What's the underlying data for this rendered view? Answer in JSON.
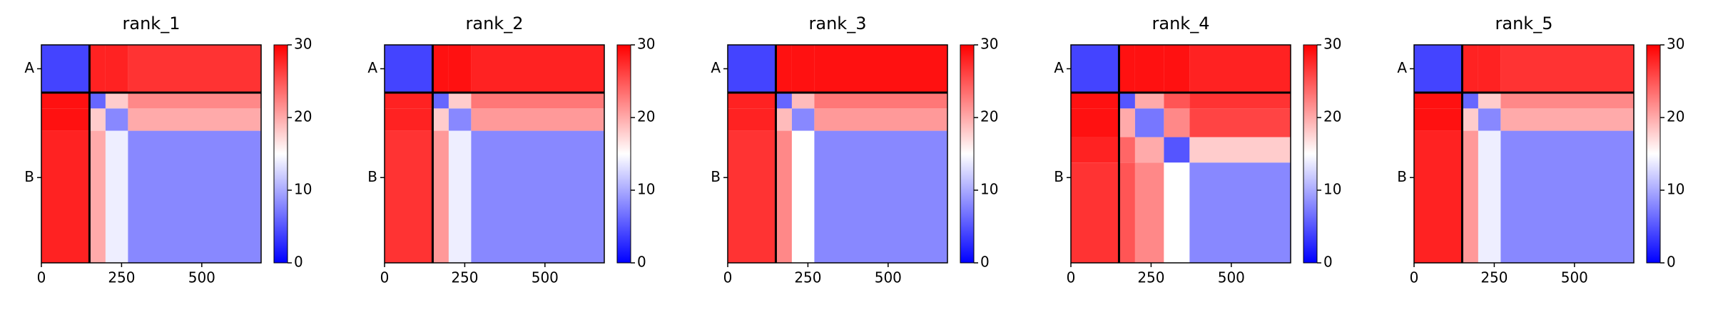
{
  "chart_data": [
    {
      "type": "heatmap",
      "title": "rank_1",
      "xlim": [
        0,
        685
      ],
      "ylim": [
        685,
        0
      ],
      "xticks": [
        0,
        250,
        500
      ],
      "yticks": [
        {
          "value": 75,
          "label": "A"
        },
        {
          "value": 417,
          "label": "B"
        }
      ],
      "boundaries": [
        150,
        200,
        270
      ],
      "chain_break": 150,
      "values": [
        [
          4,
          28,
          28,
          27
        ],
        [
          29,
          6,
          18,
          22
        ],
        [
          29,
          18,
          8,
          20
        ],
        [
          28,
          20,
          14,
          8
        ]
      ],
      "clim": [
        0,
        30
      ],
      "cticks": [
        0,
        10,
        20,
        30
      ],
      "cmap": "bwr"
    },
    {
      "type": "heatmap",
      "title": "rank_2",
      "xlim": [
        0,
        685
      ],
      "ylim": [
        685,
        0
      ],
      "xticks": [
        0,
        250,
        500
      ],
      "yticks": [
        {
          "value": 75,
          "label": "A"
        },
        {
          "value": 417,
          "label": "B"
        }
      ],
      "boundaries": [
        150,
        200,
        270
      ],
      "chain_break": 150,
      "values": [
        [
          4,
          29,
          29,
          28
        ],
        [
          28,
          6,
          18,
          23
        ],
        [
          28,
          18,
          8,
          21
        ],
        [
          27,
          21,
          14,
          8
        ]
      ],
      "clim": [
        0,
        30
      ],
      "cticks": [
        0,
        10,
        20,
        30
      ],
      "cmap": "bwr"
    },
    {
      "type": "heatmap",
      "title": "rank_3",
      "xlim": [
        0,
        685
      ],
      "ylim": [
        685,
        0
      ],
      "xticks": [
        0,
        250,
        500
      ],
      "yticks": [
        {
          "value": 75,
          "label": "A"
        },
        {
          "value": 417,
          "label": "B"
        }
      ],
      "boundaries": [
        150,
        200,
        270
      ],
      "chain_break": 150,
      "values": [
        [
          4,
          29,
          29,
          29
        ],
        [
          28,
          6,
          19,
          23
        ],
        [
          28,
          19,
          8,
          21
        ],
        [
          27,
          22,
          15,
          8
        ]
      ],
      "clim": [
        0,
        30
      ],
      "cticks": [
        0,
        10,
        20,
        30
      ],
      "cmap": "bwr"
    },
    {
      "type": "heatmap",
      "title": "rank_4",
      "xlim": [
        0,
        685
      ],
      "ylim": [
        685,
        0
      ],
      "xticks": [
        0,
        250,
        500
      ],
      "yticks": [
        {
          "value": 75,
          "label": "A"
        },
        {
          "value": 417,
          "label": "B"
        }
      ],
      "boundaries": [
        150,
        200,
        290,
        370
      ],
      "chain_break": 150,
      "values": [
        [
          4,
          29,
          29,
          29,
          28
        ],
        [
          29,
          5,
          20,
          25,
          27
        ],
        [
          29,
          20,
          7,
          22,
          26
        ],
        [
          28,
          24,
          20,
          5,
          18
        ],
        [
          27,
          25,
          22,
          15,
          8
        ]
      ],
      "clim": [
        0,
        30
      ],
      "cticks": [
        0,
        10,
        20,
        30
      ],
      "cmap": "bwr"
    },
    {
      "type": "heatmap",
      "title": "rank_5",
      "xlim": [
        0,
        685
      ],
      "ylim": [
        685,
        0
      ],
      "xticks": [
        0,
        250,
        500
      ],
      "yticks": [
        {
          "value": 75,
          "label": "A"
        },
        {
          "value": 417,
          "label": "B"
        }
      ],
      "boundaries": [
        150,
        200,
        270
      ],
      "chain_break": 150,
      "values": [
        [
          4,
          28,
          28,
          27
        ],
        [
          29,
          6,
          18,
          22
        ],
        [
          29,
          18,
          8,
          20
        ],
        [
          28,
          21,
          14,
          8
        ]
      ],
      "clim": [
        0,
        30
      ],
      "cticks": [
        0,
        10,
        20,
        30
      ],
      "cmap": "bwr"
    }
  ]
}
